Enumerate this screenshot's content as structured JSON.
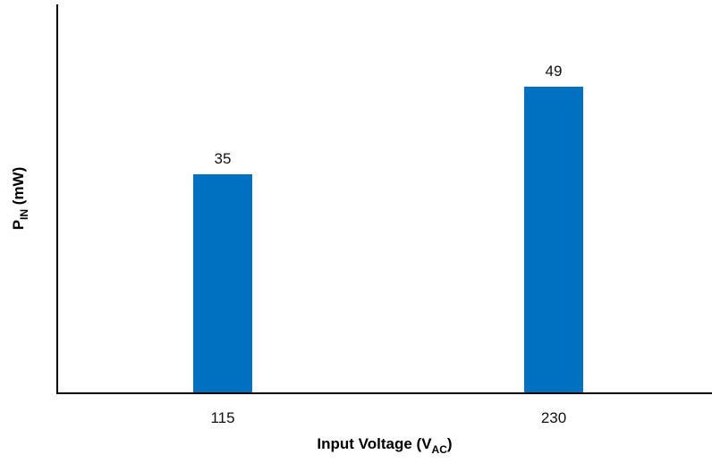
{
  "chart_data": {
    "type": "bar",
    "categories": [
      "115",
      "230"
    ],
    "values": [
      35,
      49
    ],
    "data_labels": [
      "35",
      "49"
    ],
    "xlabel": {
      "main": "Input Voltage (V",
      "sub": "AC",
      "close": ")"
    },
    "ylabel": {
      "main": "P",
      "sub": "IN",
      "rest": " (mW)"
    },
    "ylim": [
      0,
      55
    ],
    "grid": false,
    "bar_color": "#0070C0",
    "axis_color": "#000000"
  }
}
